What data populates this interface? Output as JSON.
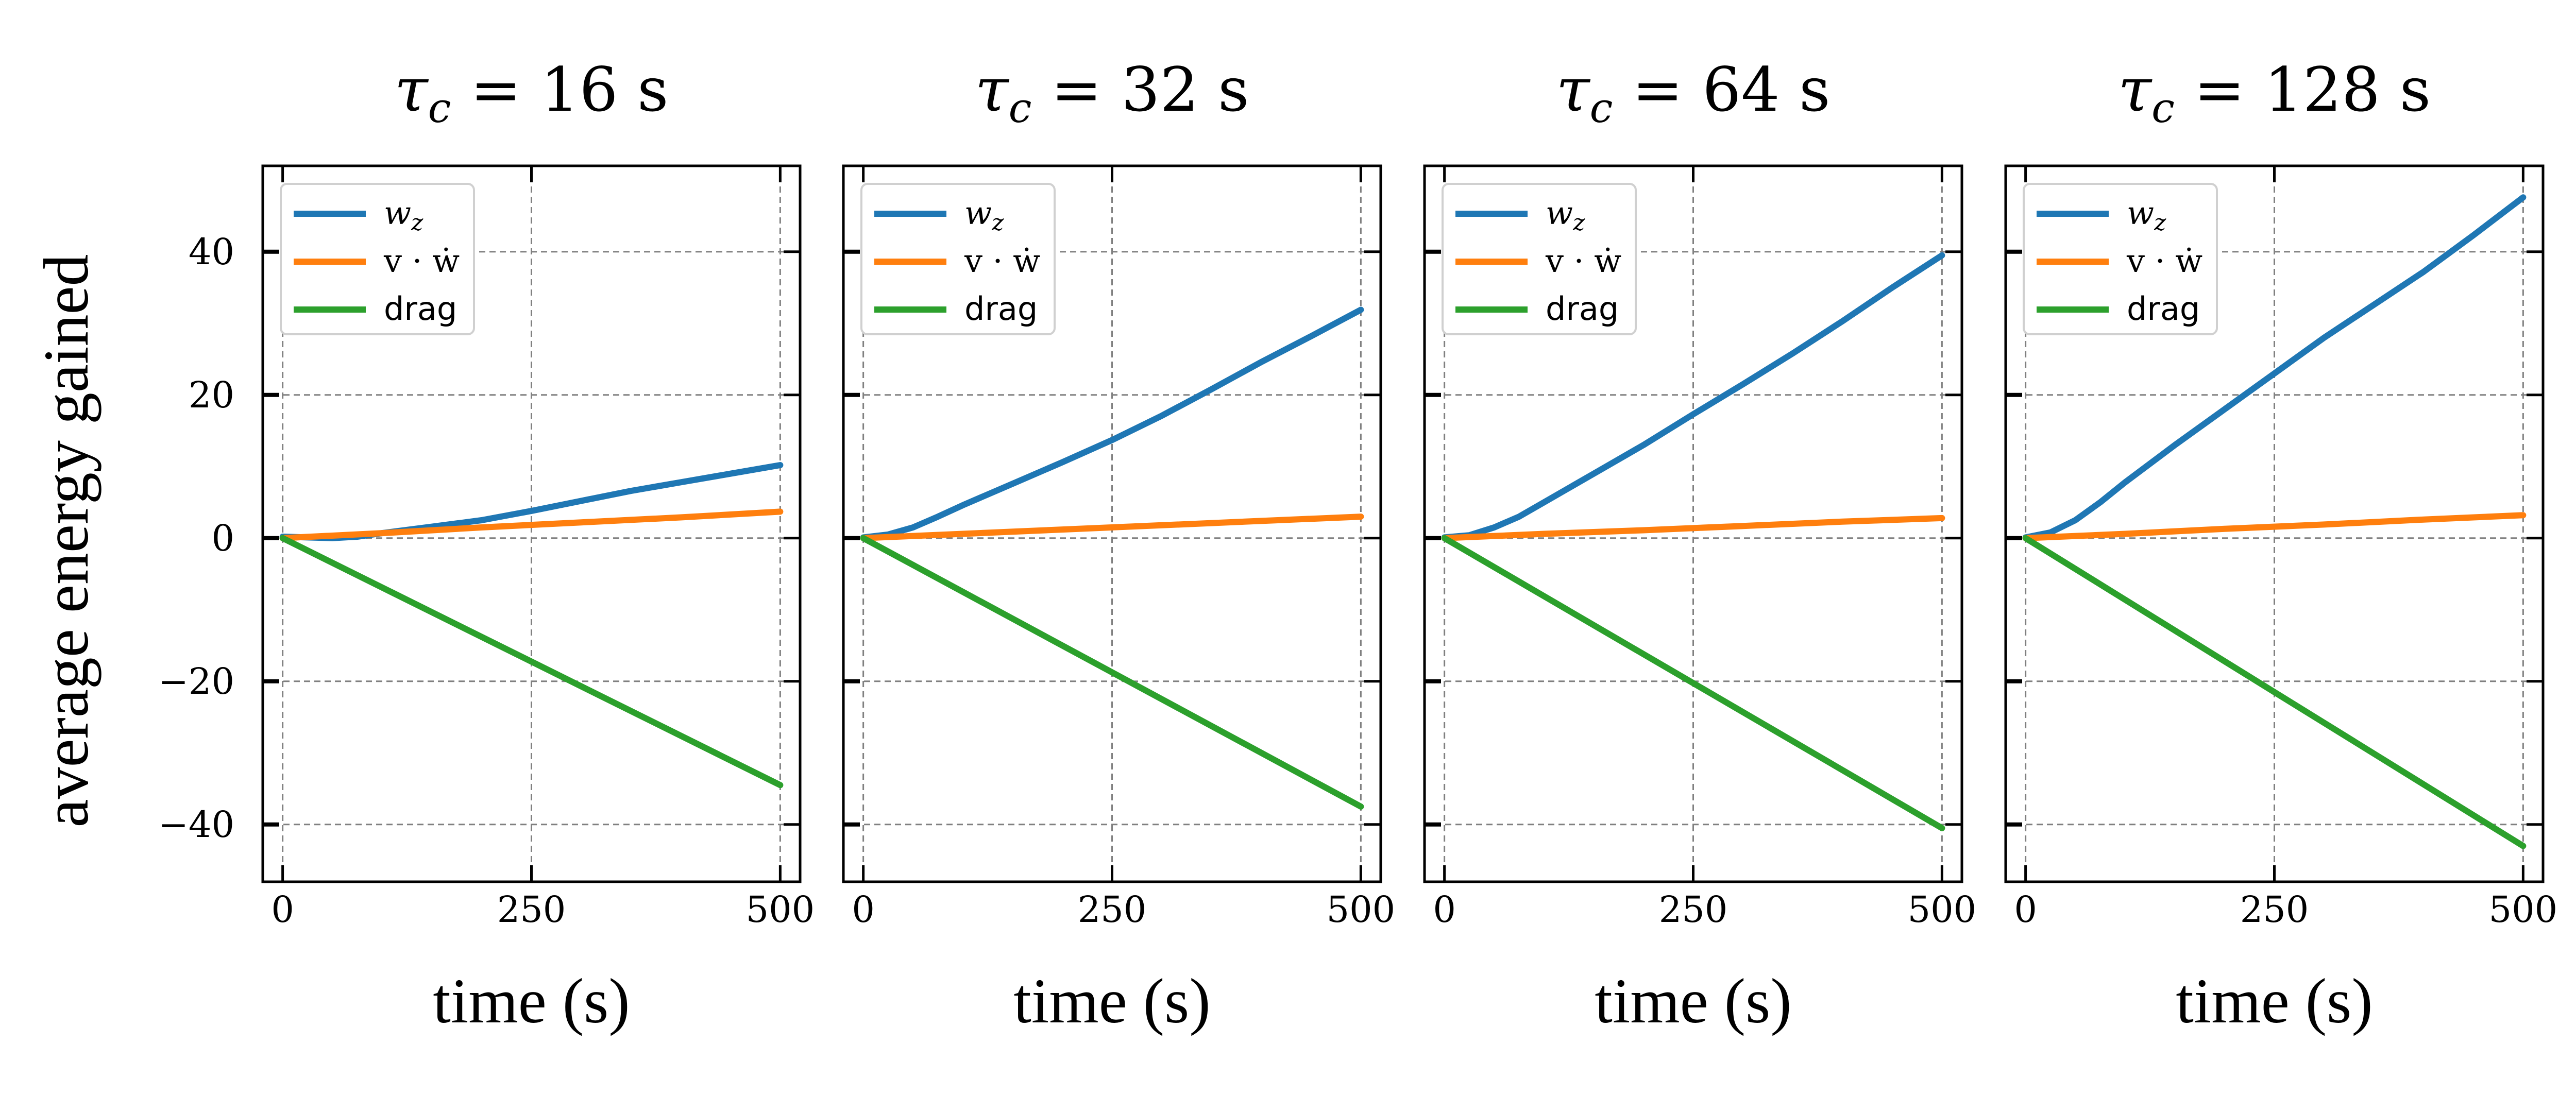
{
  "chart_data": [
    {
      "type": "line",
      "title": "τc = 16 s",
      "title_tau": "τ",
      "title_sub": "c",
      "title_rest": " = 16 s",
      "xlabel": "time (s)",
      "ylabel": "average energy gained",
      "xlim": [
        -20,
        520
      ],
      "ylim": [
        -48,
        52
      ],
      "xticks": [
        0,
        250,
        500
      ],
      "yticks": [
        -40,
        -20,
        0,
        20,
        40
      ],
      "grid": true,
      "legend_position": "upper-left",
      "series": [
        {
          "name": "w_z",
          "color": "#1f77b4",
          "x": [
            0,
            25,
            50,
            75,
            100,
            150,
            200,
            250,
            300,
            350,
            400,
            450,
            500
          ],
          "y": [
            0.2,
            0.1,
            0.0,
            0.2,
            0.7,
            1.6,
            2.5,
            3.8,
            5.2,
            6.6,
            7.8,
            9.0,
            10.2
          ]
        },
        {
          "name": "v · ẇ",
          "color": "#ff7f0e",
          "x": [
            0,
            100,
            200,
            300,
            400,
            500
          ],
          "y": [
            0.0,
            0.7,
            1.5,
            2.2,
            2.9,
            3.7
          ]
        },
        {
          "name": "drag",
          "color": "#2ca02c",
          "x": [
            0,
            500
          ],
          "y": [
            0.0,
            -34.5
          ]
        }
      ]
    },
    {
      "type": "line",
      "title": "τc = 32 s",
      "title_tau": "τ",
      "title_sub": "c",
      "title_rest": " = 32 s",
      "xlabel": "time (s)",
      "ylabel": "",
      "xlim": [
        -20,
        520
      ],
      "ylim": [
        -48,
        52
      ],
      "xticks": [
        0,
        250,
        500
      ],
      "yticks": [
        -40,
        -20,
        0,
        20,
        40
      ],
      "grid": true,
      "legend_position": "upper-left",
      "series": [
        {
          "name": "w_z",
          "color": "#1f77b4",
          "x": [
            0,
            25,
            50,
            75,
            100,
            150,
            200,
            250,
            300,
            350,
            400,
            450,
            500
          ],
          "y": [
            0.1,
            0.5,
            1.5,
            3.0,
            4.6,
            7.6,
            10.6,
            13.7,
            17.1,
            20.8,
            24.6,
            28.2,
            31.9
          ]
        },
        {
          "name": "v · ẇ",
          "color": "#ff7f0e",
          "x": [
            0,
            100,
            200,
            300,
            400,
            500
          ],
          "y": [
            0.0,
            0.6,
            1.2,
            1.8,
            2.4,
            3.0
          ]
        },
        {
          "name": "drag",
          "color": "#2ca02c",
          "x": [
            0,
            500
          ],
          "y": [
            0.0,
            -37.5
          ]
        }
      ]
    },
    {
      "type": "line",
      "title": "τc = 64 s",
      "title_tau": "τ",
      "title_sub": "c",
      "title_rest": " = 64 s",
      "xlabel": "time (s)",
      "ylabel": "",
      "xlim": [
        -20,
        520
      ],
      "ylim": [
        -48,
        52
      ],
      "xticks": [
        0,
        250,
        500
      ],
      "yticks": [
        -40,
        -20,
        0,
        20,
        40
      ],
      "grid": true,
      "legend_position": "upper-left",
      "series": [
        {
          "name": "w_z",
          "color": "#1f77b4",
          "x": [
            0,
            25,
            50,
            75,
            100,
            150,
            200,
            250,
            300,
            350,
            400,
            450,
            500
          ],
          "y": [
            0.1,
            0.4,
            1.5,
            3.0,
            5.0,
            9.0,
            13.0,
            17.3,
            21.5,
            25.8,
            30.3,
            35.0,
            39.5
          ]
        },
        {
          "name": "v · ẇ",
          "color": "#ff7f0e",
          "x": [
            0,
            100,
            200,
            300,
            400,
            500
          ],
          "y": [
            0.0,
            0.6,
            1.1,
            1.7,
            2.3,
            2.8
          ]
        },
        {
          "name": "drag",
          "color": "#2ca02c",
          "x": [
            0,
            500
          ],
          "y": [
            0.0,
            -40.5
          ]
        }
      ]
    },
    {
      "type": "line",
      "title": "τc = 128 s",
      "title_tau": "τ",
      "title_sub": "c",
      "title_rest": " = 128 s",
      "xlabel": "time (s)",
      "ylabel": "",
      "xlim": [
        -20,
        520
      ],
      "ylim": [
        -48,
        52
      ],
      "xticks": [
        0,
        250,
        500
      ],
      "yticks": [
        -40,
        -20,
        0,
        20,
        40
      ],
      "grid": true,
      "legend_position": "upper-left",
      "series": [
        {
          "name": "w_z",
          "color": "#1f77b4",
          "x": [
            0,
            25,
            50,
            75,
            100,
            150,
            200,
            250,
            300,
            350,
            400,
            450,
            500
          ],
          "y": [
            0.1,
            0.8,
            2.5,
            5.0,
            7.8,
            13.0,
            18.0,
            23.0,
            28.0,
            32.6,
            37.2,
            42.3,
            47.6
          ]
        },
        {
          "name": "v · ẇ",
          "color": "#ff7f0e",
          "x": [
            0,
            100,
            200,
            300,
            400,
            500
          ],
          "y": [
            0.0,
            0.6,
            1.3,
            1.9,
            2.6,
            3.2
          ]
        },
        {
          "name": "drag",
          "color": "#2ca02c",
          "x": [
            0,
            500
          ],
          "y": [
            0.0,
            -43.0
          ]
        }
      ]
    }
  ]
}
